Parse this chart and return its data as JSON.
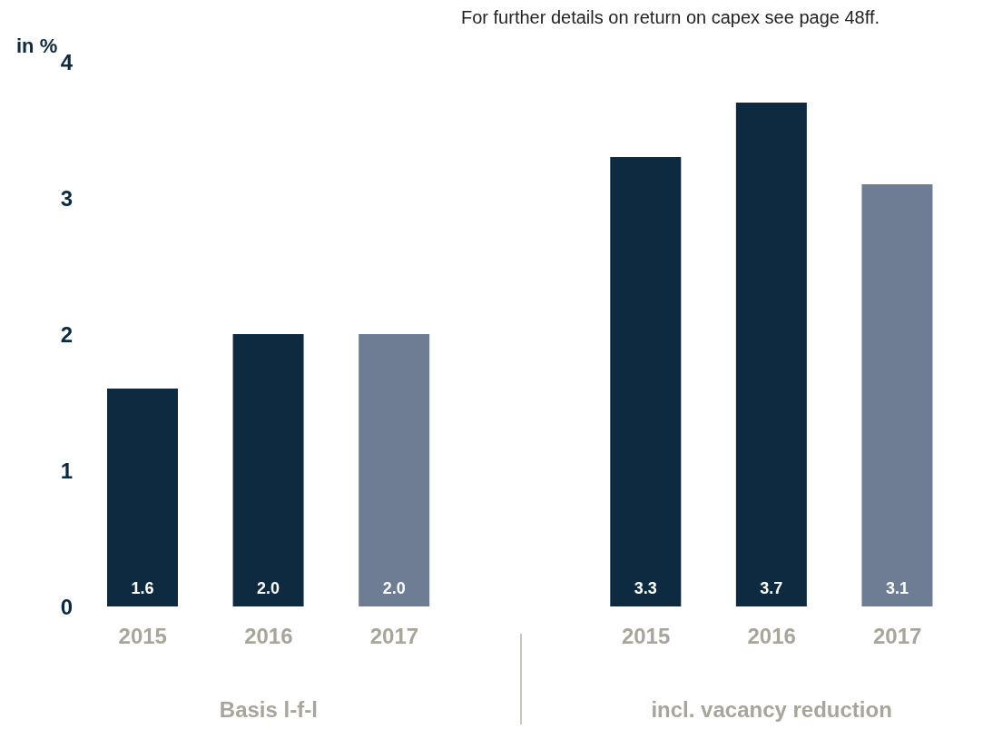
{
  "chart_data": {
    "type": "bar",
    "ylabel": "in %",
    "categories": [
      "2015",
      "2016",
      "2017",
      null,
      "2015",
      "2016",
      "2017"
    ],
    "values": [
      1.6,
      2.0,
      2.0,
      null,
      3.3,
      3.7,
      3.1
    ],
    "colors": [
      "#0d2a40",
      "#0d2a40",
      "#6e7d93",
      null,
      "#0d2a40",
      "#0d2a40",
      "#6e7d93"
    ],
    "ylim": [
      0,
      4
    ],
    "yticks": [
      0,
      1,
      2,
      3,
      4
    ],
    "grid": false,
    "value_labels": [
      "1.6",
      "2.0",
      "2.0",
      null,
      "3.3",
      "3.7",
      "3.1"
    ],
    "annotations": [
      "For further details on return on capex see page 48ff.",
      "Basis l-f-l",
      "incl. vacancy reduction"
    ]
  }
}
